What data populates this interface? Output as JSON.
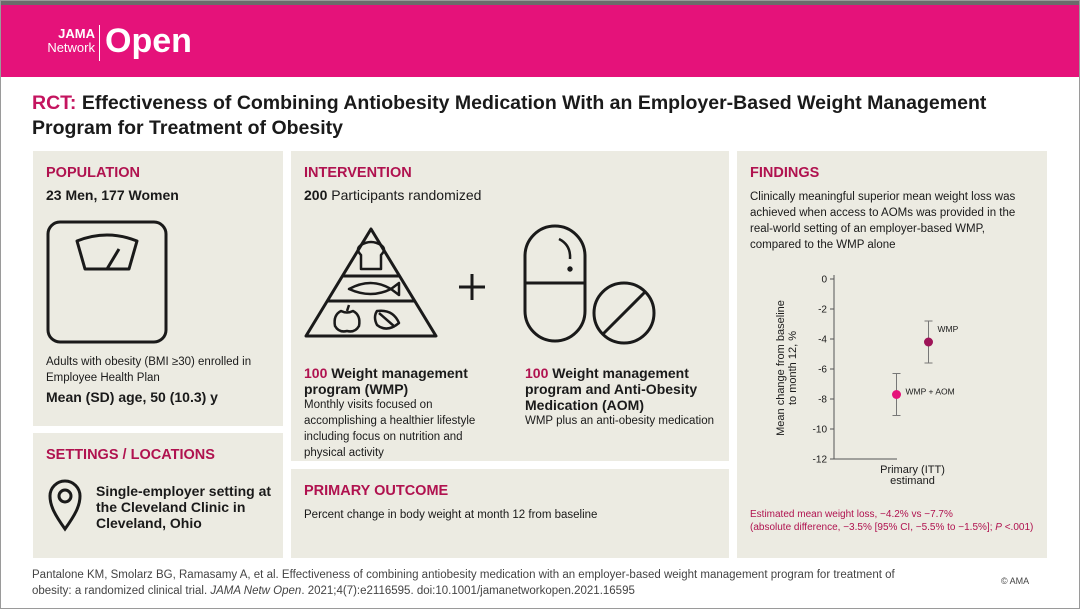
{
  "header": {
    "logo_top": "JAMA",
    "logo_bottom": "Network",
    "logo_main": "Open"
  },
  "title_prefix": "RCT:",
  "title": "Effectiveness of Combining Antiobesity Medication With an Employer-Based Weight Management Program for Treatment of Obesity",
  "population": {
    "heading": "POPULATION",
    "counts": "23 Men, 177 Women",
    "description": "Adults with obesity (BMI ≥30) enrolled in Employee Health Plan",
    "age": "Mean (SD) age, 50 (10.3) y"
  },
  "settings": {
    "heading": "SETTINGS / LOCATIONS",
    "text": "Single-employer setting at the Cleveland Clinic in Cleveland, Ohio"
  },
  "intervention": {
    "heading": "INTERVENTION",
    "randomized_n": 200,
    "randomized_text": "Participants randomized",
    "arms": [
      {
        "n": 100,
        "name": "Weight management program (WMP)",
        "description": "Monthly visits focused on accomplishing a healthier lifestyle including focus on nutrition and physical activity"
      },
      {
        "n": 100,
        "name": "Weight management program and Anti-Obesity Medication (AOM)",
        "description": "WMP plus an anti-obesity medication"
      }
    ]
  },
  "primary_outcome": {
    "heading": "PRIMARY OUTCOME",
    "text": "Percent change in body weight at month 12 from baseline"
  },
  "findings": {
    "heading": "FINDINGS",
    "text": "Clinically meaningful superior mean weight loss was achieved when access to AOMs was provided in the real-world setting of an employer-based WMP, compared to the WMP alone",
    "summary_line1": "Estimated mean weight loss, −4.2% vs −7.7%",
    "summary_line2a": "(absolute difference, −3.5% [95% CI, −5.5% to −1.5%]; ",
    "summary_p": "P",
    "summary_line2b": " <.001)"
  },
  "chart_data": {
    "type": "scatter",
    "ylabel": "Mean change from baseline to month 12, %",
    "categories": [
      "Primary (ITT) estimand"
    ],
    "series": [
      {
        "name": "WMP",
        "color": "#9e1458",
        "values": [
          -4.2
        ],
        "errors": [
          1.4
        ]
      },
      {
        "name": "WMP + AOM",
        "color": "#e5127a",
        "values": [
          -7.7
        ],
        "errors": [
          1.4
        ]
      }
    ],
    "ylim": [
      -12,
      0
    ],
    "yticks": [
      0,
      -2,
      -4,
      -6,
      -8,
      -10,
      -12
    ],
    "grid": false
  },
  "citation": {
    "part1": "Pantalone KM, Smolarz BG, Ramasamy A, et al. Effectiveness of combining antiobesity medication with an employer-based weight management program for treatment of obesity: a randomized clinical trial. ",
    "journal": "JAMA Netw Open",
    "part2": ". 2021;4(7):e2116595. doi:10.1001/jamanetworkopen.2021.16595",
    "copyright": "© AMA"
  }
}
